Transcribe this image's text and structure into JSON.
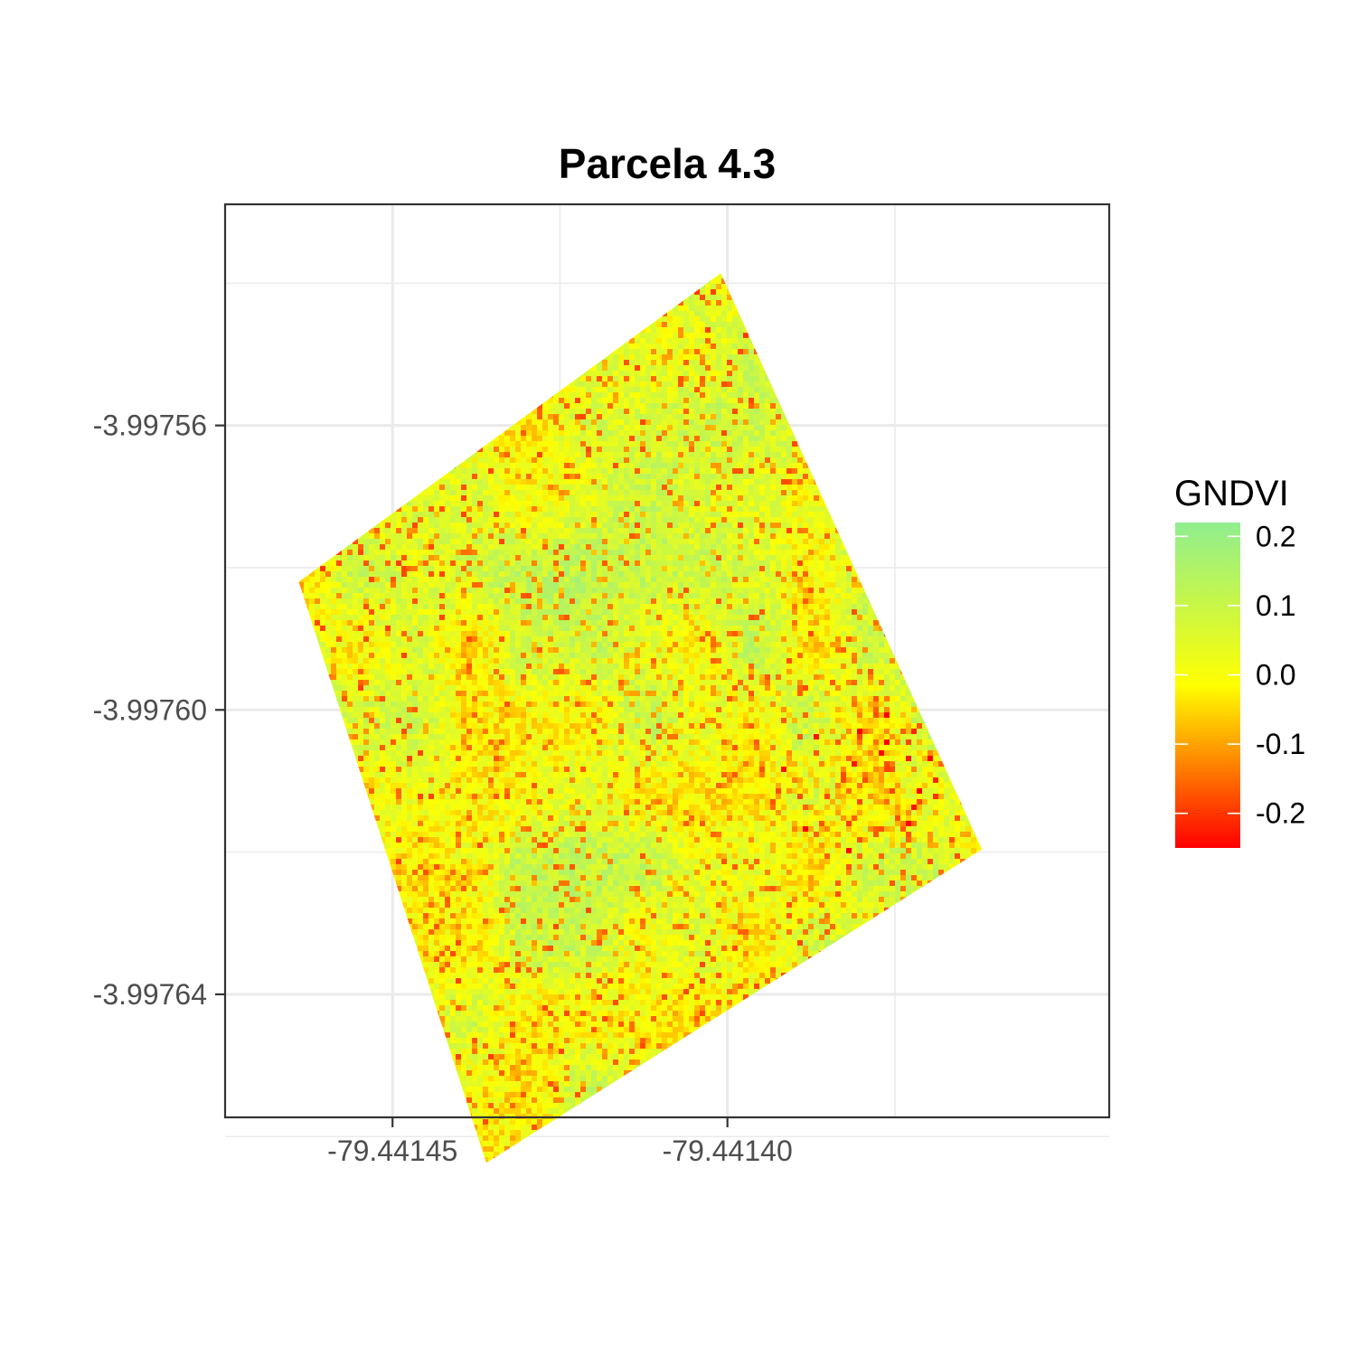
{
  "chart_data": {
    "type": "heatmap",
    "title": "Parcela 4.3",
    "xlabel": "",
    "ylabel": "",
    "x_ticks": [
      {
        "value": -79.44145,
        "label": "-79.44145"
      },
      {
        "value": -79.4414,
        "label": "-79.44140"
      }
    ],
    "y_ticks": [
      {
        "value": -3.99756,
        "label": "-3.99756"
      },
      {
        "value": -3.9976,
        "label": "-3.99760"
      },
      {
        "value": -3.99764,
        "label": "-3.99764"
      }
    ],
    "xlim": [
      -79.441475,
      -79.441343
    ],
    "ylim": [
      -3.9976573,
      -3.9975289
    ],
    "grid": true,
    "raster_corners": [
      {
        "x": -79.441464,
        "y": -3.997582
      },
      {
        "x": -79.441401,
        "y": -3.9975386
      },
      {
        "x": -79.441362,
        "y": -3.9976196
      },
      {
        "x": -79.441436,
        "y": -3.9976637
      }
    ],
    "fill_range": [
      -0.25,
      0.22
    ],
    "legend": {
      "title": "GNDVI",
      "placement": "right",
      "breaks": [
        {
          "value": 0.2,
          "label": "0.2"
        },
        {
          "value": 0.1,
          "label": "0.1"
        },
        {
          "value": 0.0,
          "label": "0.0"
        },
        {
          "value": -0.1,
          "label": "-0.1"
        },
        {
          "value": -0.2,
          "label": "-0.2"
        }
      ],
      "colors": [
        "#ff0000",
        "#ffff00",
        "#90ee90"
      ]
    }
  }
}
